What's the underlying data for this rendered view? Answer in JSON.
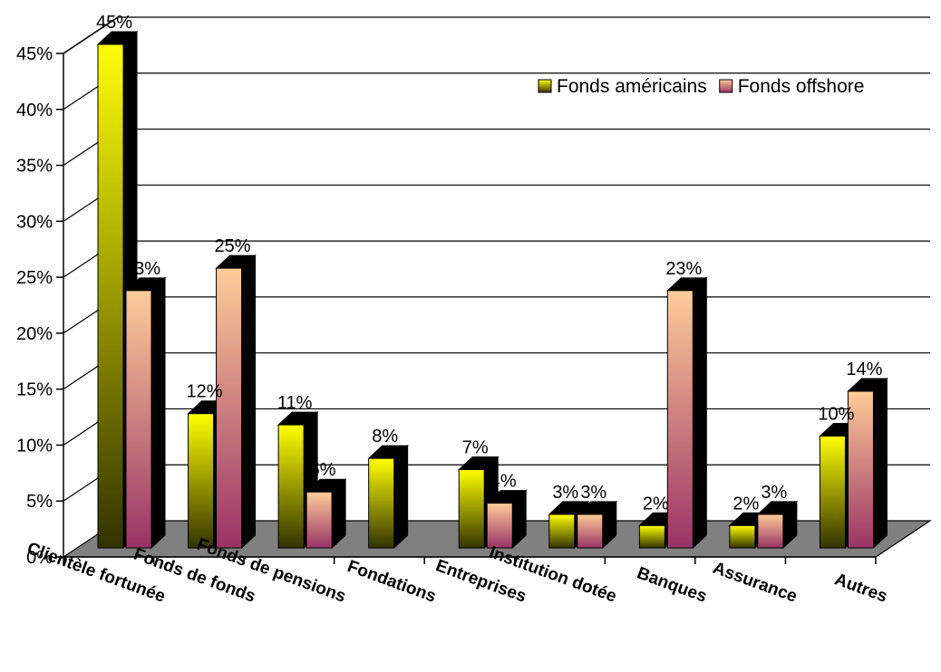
{
  "chart_data": {
    "type": "bar",
    "title": "",
    "xlabel": "",
    "ylabel": "",
    "categories": [
      "Clientèle fortunée",
      "Fonds de fonds",
      "Fonds de pensions",
      "Fondations",
      "Entreprises",
      "Institution dotée",
      "Banques",
      "Assurance",
      "Autres"
    ],
    "series": [
      {
        "name": "Fonds américains",
        "values": [
          45,
          12,
          11,
          8,
          7,
          3,
          2,
          2,
          10
        ],
        "labels": [
          "45%",
          "12%",
          "11%",
          "8%",
          "7%",
          "3%",
          "2%",
          "2%",
          "10%"
        ]
      },
      {
        "name": "Fonds offshore",
        "values": [
          23,
          25,
          5,
          null,
          4,
          3,
          23,
          3,
          14
        ],
        "labels": [
          "23%",
          "25%",
          "5%",
          "",
          "4%",
          "3%",
          "23%",
          "3%",
          "14%"
        ]
      }
    ],
    "ylim": [
      0,
      45
    ],
    "yticks": [
      "0%",
      "5%",
      "10%",
      "15%",
      "20%",
      "25%",
      "30%",
      "35%",
      "40%",
      "45%"
    ],
    "grid": true,
    "legend_position": "top-right",
    "style": "3d",
    "colors": {
      "series1_top": "#ffff00",
      "series1_bottom": "#333300",
      "series2_top": "#ffcc99",
      "series2_bottom": "#993366",
      "floor": "#808080",
      "shadow": "#000000"
    }
  }
}
